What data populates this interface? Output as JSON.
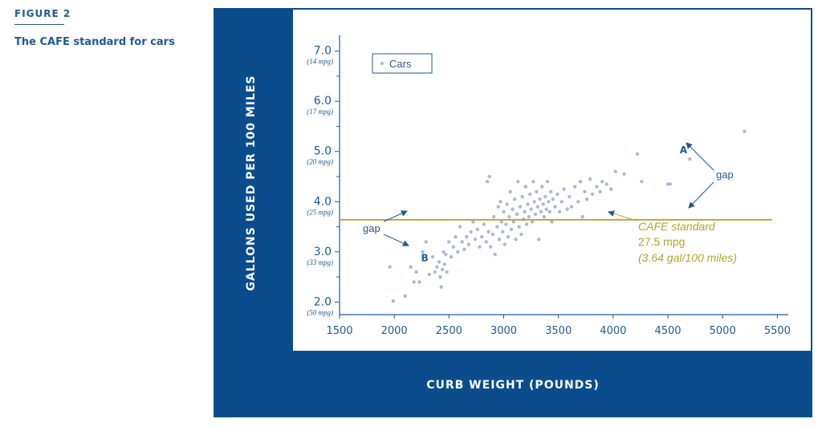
{
  "figure": {
    "label": "FIGURE 2",
    "title": "The CAFE standard for cars"
  },
  "colors": {
    "panel": "#0b4d8c",
    "axis": "#1f5a96",
    "points": "#aeb8d6",
    "standard": "#b7a330"
  },
  "chart_data": {
    "type": "scatter",
    "ylabel": "GALLONS USED PER 100 MILES",
    "xlabel": "CURB WEIGHT (POUNDS)",
    "xlim": [
      1500,
      5600
    ],
    "ylim": [
      1.75,
      7.25
    ],
    "x_ticks": [
      "1500",
      "2000",
      "2500",
      "3000",
      "3500",
      "4000",
      "4500",
      "5000",
      "5500"
    ],
    "y_ticks": [
      {
        "value": "7.0",
        "sub": "(14 mpg)"
      },
      {
        "value": "6.0",
        "sub": "(17 mpg)"
      },
      {
        "value": "5.0",
        "sub": "(20 mpg)"
      },
      {
        "value": "4.0",
        "sub": "(25 mpg)"
      },
      {
        "value": "3.0",
        "sub": "(33 mpg)"
      },
      {
        "value": "2.0",
        "sub": "(50 mpg)"
      }
    ],
    "legend": {
      "label": "Cars",
      "position": "top-left"
    },
    "standard": {
      "y": 3.64,
      "lines": [
        "CAFE standard",
        "27.5 mpg",
        "(3.64 gal/100 miles)"
      ]
    },
    "annotations": [
      {
        "letter": "A",
        "x": 4720,
        "y": 5.03
      },
      {
        "letter": "B",
        "x": 2230,
        "y": 2.88
      },
      {
        "gap_label": "gap",
        "side": "right"
      },
      {
        "gap_label": "gap",
        "side": "left"
      }
    ],
    "series": [
      {
        "points": [
          [
            1960,
            2.7
          ],
          [
            1990,
            2.02
          ],
          [
            2100,
            2.12
          ],
          [
            2150,
            2.7
          ],
          [
            2180,
            2.4
          ],
          [
            2200,
            2.6
          ],
          [
            2230,
            2.4
          ],
          [
            2260,
            3.0
          ],
          [
            2290,
            3.2
          ],
          [
            2320,
            2.55
          ],
          [
            2350,
            2.9
          ],
          [
            2370,
            2.6
          ],
          [
            2390,
            2.7
          ],
          [
            2410,
            2.8
          ],
          [
            2420,
            2.5
          ],
          [
            2430,
            2.3
          ],
          [
            2440,
            2.65
          ],
          [
            2450,
            3.0
          ],
          [
            2460,
            2.75
          ],
          [
            2470,
            2.95
          ],
          [
            2480,
            2.6
          ],
          [
            2500,
            3.2
          ],
          [
            2520,
            2.9
          ],
          [
            2540,
            3.1
          ],
          [
            2560,
            3.3
          ],
          [
            2580,
            3.0
          ],
          [
            2600,
            3.5
          ],
          [
            2620,
            3.2
          ],
          [
            2640,
            3.05
          ],
          [
            2660,
            3.3
          ],
          [
            2680,
            3.15
          ],
          [
            2700,
            3.4
          ],
          [
            2720,
            3.6
          ],
          [
            2740,
            3.25
          ],
          [
            2760,
            3.45
          ],
          [
            2780,
            3.1
          ],
          [
            2800,
            3.3
          ],
          [
            2820,
            3.55
          ],
          [
            2840,
            3.2
          ],
          [
            2850,
            4.4
          ],
          [
            2860,
            3.4
          ],
          [
            2870,
            4.5
          ],
          [
            2880,
            3.1
          ],
          [
            2900,
            3.35
          ],
          [
            2910,
            3.7
          ],
          [
            2920,
            2.95
          ],
          [
            2940,
            3.5
          ],
          [
            2950,
            3.9
          ],
          [
            2960,
            3.25
          ],
          [
            2970,
            4.0
          ],
          [
            2980,
            3.6
          ],
          [
            2990,
            3.4
          ],
          [
            3000,
            3.8
          ],
          [
            3010,
            3.15
          ],
          [
            3020,
            3.55
          ],
          [
            3030,
            3.95
          ],
          [
            3040,
            3.3
          ],
          [
            3050,
            3.7
          ],
          [
            3060,
            4.2
          ],
          [
            3070,
            3.45
          ],
          [
            3080,
            3.85
          ],
          [
            3090,
            3.6
          ],
          [
            3100,
            4.05
          ],
          [
            3110,
            3.25
          ],
          [
            3120,
            3.75
          ],
          [
            3130,
            4.4
          ],
          [
            3140,
            3.5
          ],
          [
            3150,
            3.9
          ],
          [
            3160,
            3.35
          ],
          [
            3170,
            4.1
          ],
          [
            3180,
            3.65
          ],
          [
            3190,
            3.8
          ],
          [
            3200,
            4.3
          ],
          [
            3210,
            3.55
          ],
          [
            3220,
            3.95
          ],
          [
            3230,
            3.7
          ],
          [
            3240,
            4.15
          ],
          [
            3250,
            3.85
          ],
          [
            3260,
            3.6
          ],
          [
            3270,
            4.4
          ],
          [
            3280,
            4.0
          ],
          [
            3290,
            3.75
          ],
          [
            3300,
            4.2
          ],
          [
            3310,
            3.9
          ],
          [
            3320,
            3.25
          ],
          [
            3330,
            4.05
          ],
          [
            3340,
            3.8
          ],
          [
            3350,
            4.3
          ],
          [
            3360,
            3.95
          ],
          [
            3370,
            3.7
          ],
          [
            3380,
            4.1
          ],
          [
            3390,
            3.85
          ],
          [
            3400,
            4.4
          ],
          [
            3410,
            4.0
          ],
          [
            3420,
            3.8
          ],
          [
            3430,
            4.2
          ],
          [
            3440,
            3.6
          ],
          [
            3450,
            4.05
          ],
          [
            3470,
            3.9
          ],
          [
            3490,
            4.15
          ],
          [
            3510,
            3.8
          ],
          [
            3530,
            4.0
          ],
          [
            3550,
            4.25
          ],
          [
            3580,
            3.85
          ],
          [
            3600,
            4.1
          ],
          [
            3620,
            3.9
          ],
          [
            3650,
            4.3
          ],
          [
            3680,
            4.0
          ],
          [
            3700,
            4.4
          ],
          [
            3720,
            3.7
          ],
          [
            3740,
            4.2
          ],
          [
            3760,
            4.05
          ],
          [
            3790,
            4.45
          ],
          [
            3810,
            4.15
          ],
          [
            3850,
            4.3
          ],
          [
            3880,
            4.2
          ],
          [
            3900,
            4.4
          ],
          [
            3940,
            4.35
          ],
          [
            3980,
            4.25
          ],
          [
            4020,
            4.6
          ],
          [
            4100,
            4.55
          ],
          [
            4220,
            4.95
          ],
          [
            4260,
            4.4
          ],
          [
            4500,
            4.35
          ],
          [
            4520,
            4.35
          ],
          [
            4700,
            4.85
          ],
          [
            5200,
            5.4
          ]
        ]
      }
    ]
  }
}
